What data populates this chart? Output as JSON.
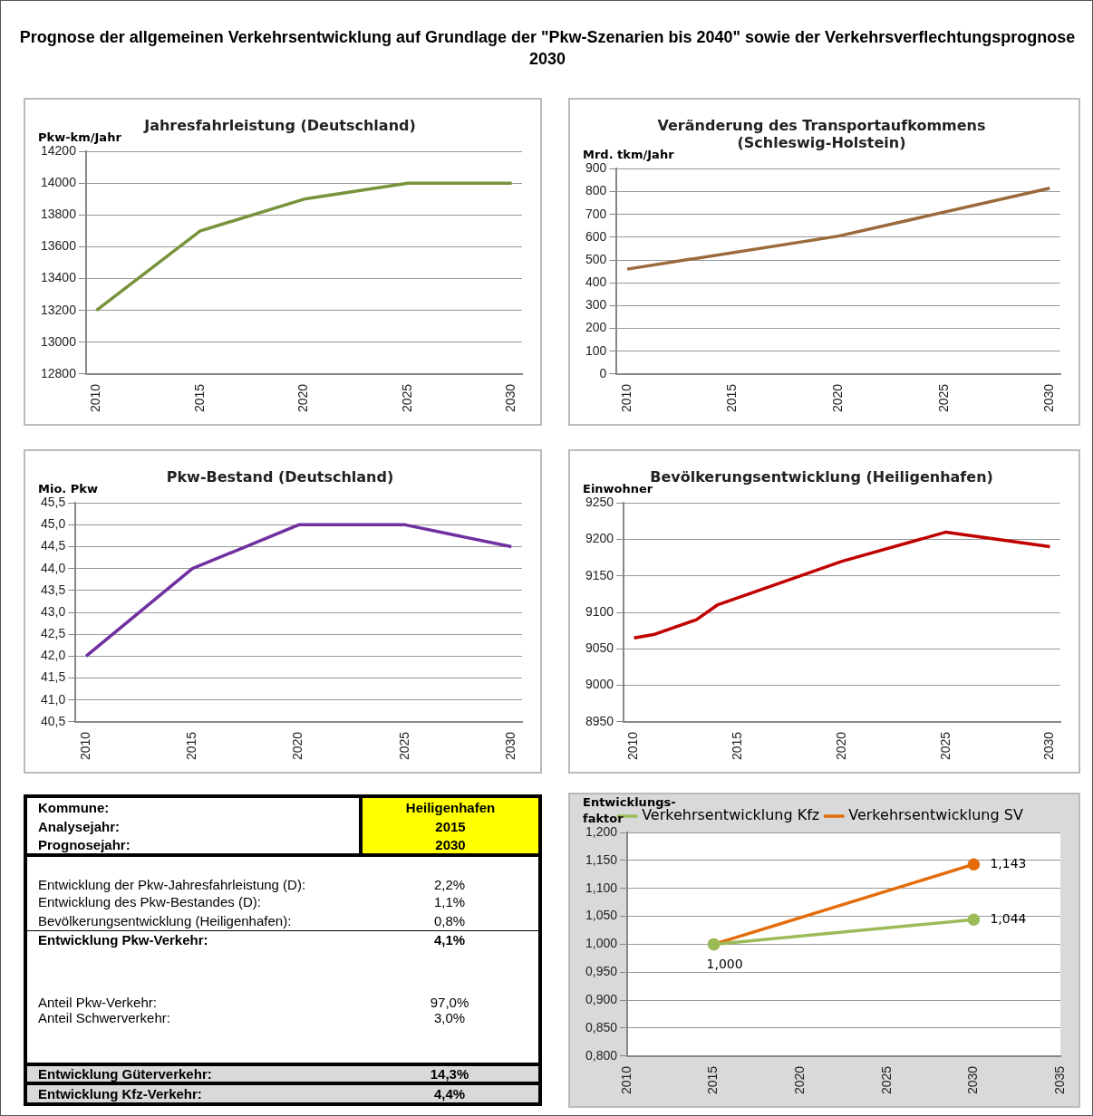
{
  "chart_data": [
    {
      "type": "other",
      "title": "Prognose der allgemeinen Verkehrsentwicklung auf Grundlage der \"Pkw-Szenarien bis 2040\" sowie der Verkehrsverflechtungsprognose 2030"
    },
    {
      "type": "line",
      "title": "Jahresfahrleistung (Deutschland)",
      "ylabel": "Pkw-km/Jahr",
      "x": [
        2010,
        2015,
        2020,
        2025,
        2030
      ],
      "values": [
        13200,
        13700,
        13900,
        14000,
        14000
      ],
      "color": "#77933c",
      "xlim": [
        2009.5,
        2030.5
      ],
      "xticks": [
        2010,
        2015,
        2020,
        2025,
        2030
      ],
      "ylim": [
        12800,
        14200
      ],
      "yticks": [
        12800,
        13000,
        13200,
        13400,
        13600,
        13800,
        14000,
        14200
      ],
      "grid": "y",
      "legend": false
    },
    {
      "type": "line",
      "title": "Veränderung des Transportaufkommens\n(Schleswig-Holstein)",
      "ylabel": "Mrd. tkm/Jahr",
      "x": [
        2010,
        2020,
        2030
      ],
      "values": [
        460,
        605,
        815
      ],
      "color": "#9b6a3c",
      "xlim": [
        2009.5,
        2030.5
      ],
      "xticks": [
        2010,
        2015,
        2020,
        2025,
        2030
      ],
      "ylim": [
        0,
        900
      ],
      "yticks": [
        0,
        100,
        200,
        300,
        400,
        500,
        600,
        700,
        800,
        900
      ],
      "grid": "y",
      "legend": false
    },
    {
      "type": "line",
      "title": "Pkw-Bestand (Deutschland)",
      "ylabel": "Mio. Pkw",
      "x": [
        2010,
        2015,
        2020,
        2025,
        2030
      ],
      "values": [
        42.0,
        44.0,
        45.0,
        45.0,
        44.5
      ],
      "color": "#7030a0",
      "xlim": [
        2009.5,
        2030.5
      ],
      "xticks": [
        2010,
        2015,
        2020,
        2025,
        2030
      ],
      "ylim": [
        40.5,
        45.5
      ],
      "yticks": [
        {
          "value": 40.5,
          "label": "40,5"
        },
        {
          "value": 41,
          "label": "41,0"
        },
        {
          "value": 41.5,
          "label": "41,5"
        },
        {
          "value": 42,
          "label": "42,0"
        },
        {
          "value": 42.5,
          "label": "42,5"
        },
        {
          "value": 43,
          "label": "43,0"
        },
        {
          "value": 43.5,
          "label": "43,5"
        },
        {
          "value": 44,
          "label": "44,0"
        },
        {
          "value": 44.5,
          "label": "44,5"
        },
        {
          "value": 45,
          "label": "45,0"
        },
        {
          "value": 45.5,
          "label": "45,5"
        }
      ],
      "grid": "y",
      "legend": false
    },
    {
      "type": "line",
      "title": "Bevölkerungsentwicklung (Heiligenhafen)",
      "ylabel": "Einwohner",
      "x": [
        2010,
        2011,
        2013,
        2014,
        2020,
        2025,
        2030
      ],
      "values": [
        9065,
        9070,
        9090,
        9110,
        9170,
        9210,
        9190
      ],
      "color": "#c00000",
      "xlim": [
        2009.5,
        2030.5
      ],
      "xticks": [
        2010,
        2015,
        2020,
        2025,
        2030
      ],
      "ylim": [
        8950,
        9250
      ],
      "yticks": [
        8950,
        9000,
        9050,
        9100,
        9150,
        9200,
        9250
      ],
      "grid": "y",
      "legend": false
    },
    {
      "type": "other",
      "annotations": [
        "Kommune:",
        "Heiligenhafen",
        "Analysejahr:",
        "2015",
        "Prognosejahr:",
        "2030",
        "Entwicklung der Pkw-Jahresfahrleistung (D):",
        "2,2%",
        "Entwicklung des Pkw-Bestandes (D):",
        "1,1%",
        "Bevölkerungsentwicklung (Heiligenhafen):",
        "0,8%",
        "Entwicklung Pkw-Verkehr:",
        "4,1%",
        "Anteil Pkw-Verkehr:",
        "97,0%",
        "Anteil Schwerverkehr:",
        "3,0%",
        "Entwicklung Güterverkehr:",
        "14,3%",
        "Entwicklung Kfz-Verkehr:",
        "4,4%"
      ]
    },
    {
      "type": "line",
      "ylabel": "Entwicklungs-\nfaktor",
      "x": [
        2015,
        2030
      ],
      "xlim": [
        2010,
        2035
      ],
      "xticks": [
        2010,
        2015,
        2020,
        2025,
        2030,
        2035
      ],
      "ylim": [
        0.8,
        1.2
      ],
      "yticks": [
        {
          "value": 0.8,
          "label": "0,800"
        },
        {
          "value": 0.85,
          "label": "0,850"
        },
        {
          "value": 0.9,
          "label": "0,900"
        },
        {
          "value": 0.95,
          "label": "0,950"
        },
        {
          "value": 1.0,
          "label": "1,000"
        },
        {
          "value": 1.05,
          "label": "1,050"
        },
        {
          "value": 1.1,
          "label": "1,100"
        },
        {
          "value": 1.15,
          "label": "1,150"
        },
        {
          "value": 1.2,
          "label": "1,200"
        }
      ],
      "grid": "y",
      "legend": "top",
      "marker": "circle",
      "series": [
        {
          "name": "Verkehrsentwicklung Kfz",
          "color": "#9bbb59",
          "values": [
            1.0,
            1.044
          ],
          "value_labels": [
            null,
            "1,044"
          ]
        },
        {
          "name": "Verkehrsentwicklung SV",
          "color": "#e46c0a",
          "values": [
            1.0,
            1.143
          ],
          "value_labels": [
            "1,000",
            "1,143"
          ]
        }
      ]
    }
  ]
}
